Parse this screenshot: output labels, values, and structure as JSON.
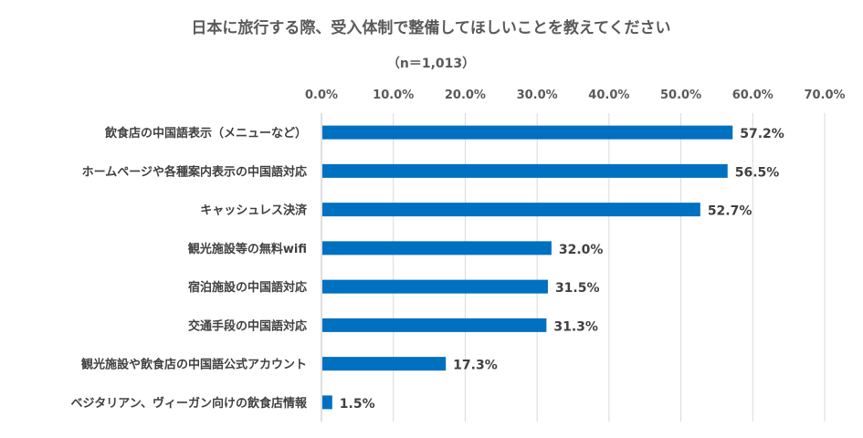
{
  "chart_data": {
    "type": "bar",
    "orientation": "horizontal",
    "title": "日本に旅行する際、受入体制で整備してほしいことを教えてください",
    "subtitle": "（n＝1,013）",
    "xlim": [
      0,
      70
    ],
    "ticks": [
      0,
      10,
      20,
      30,
      40,
      50,
      60,
      70
    ],
    "tick_labels": [
      "0.0%",
      "10.0%",
      "20.0%",
      "30.0%",
      "40.0%",
      "50.0%",
      "60.0%",
      "70.0%"
    ],
    "grid": true,
    "legend": "none",
    "bar_color": "#0070C0",
    "categories": [
      "飲食店の中国語表示（メニューなど）",
      "ホームページや各種案内表示の中国語対応",
      "キャッシュレス決済",
      "観光施設等の無料wifi",
      "宿泊施設の中国語対応",
      "交通手段の中国語対応",
      "観光施設や飲食店の中国語公式アカウント",
      "ベジタリアン、ヴィーガン向けの飲食店情報"
    ],
    "values": [
      57.2,
      56.5,
      52.7,
      32.0,
      31.5,
      31.3,
      17.3,
      1.5
    ],
    "value_labels": [
      "57.2%",
      "56.5%",
      "52.7%",
      "32.0%",
      "31.5%",
      "31.3%",
      "17.3%",
      "1.5%"
    ]
  }
}
